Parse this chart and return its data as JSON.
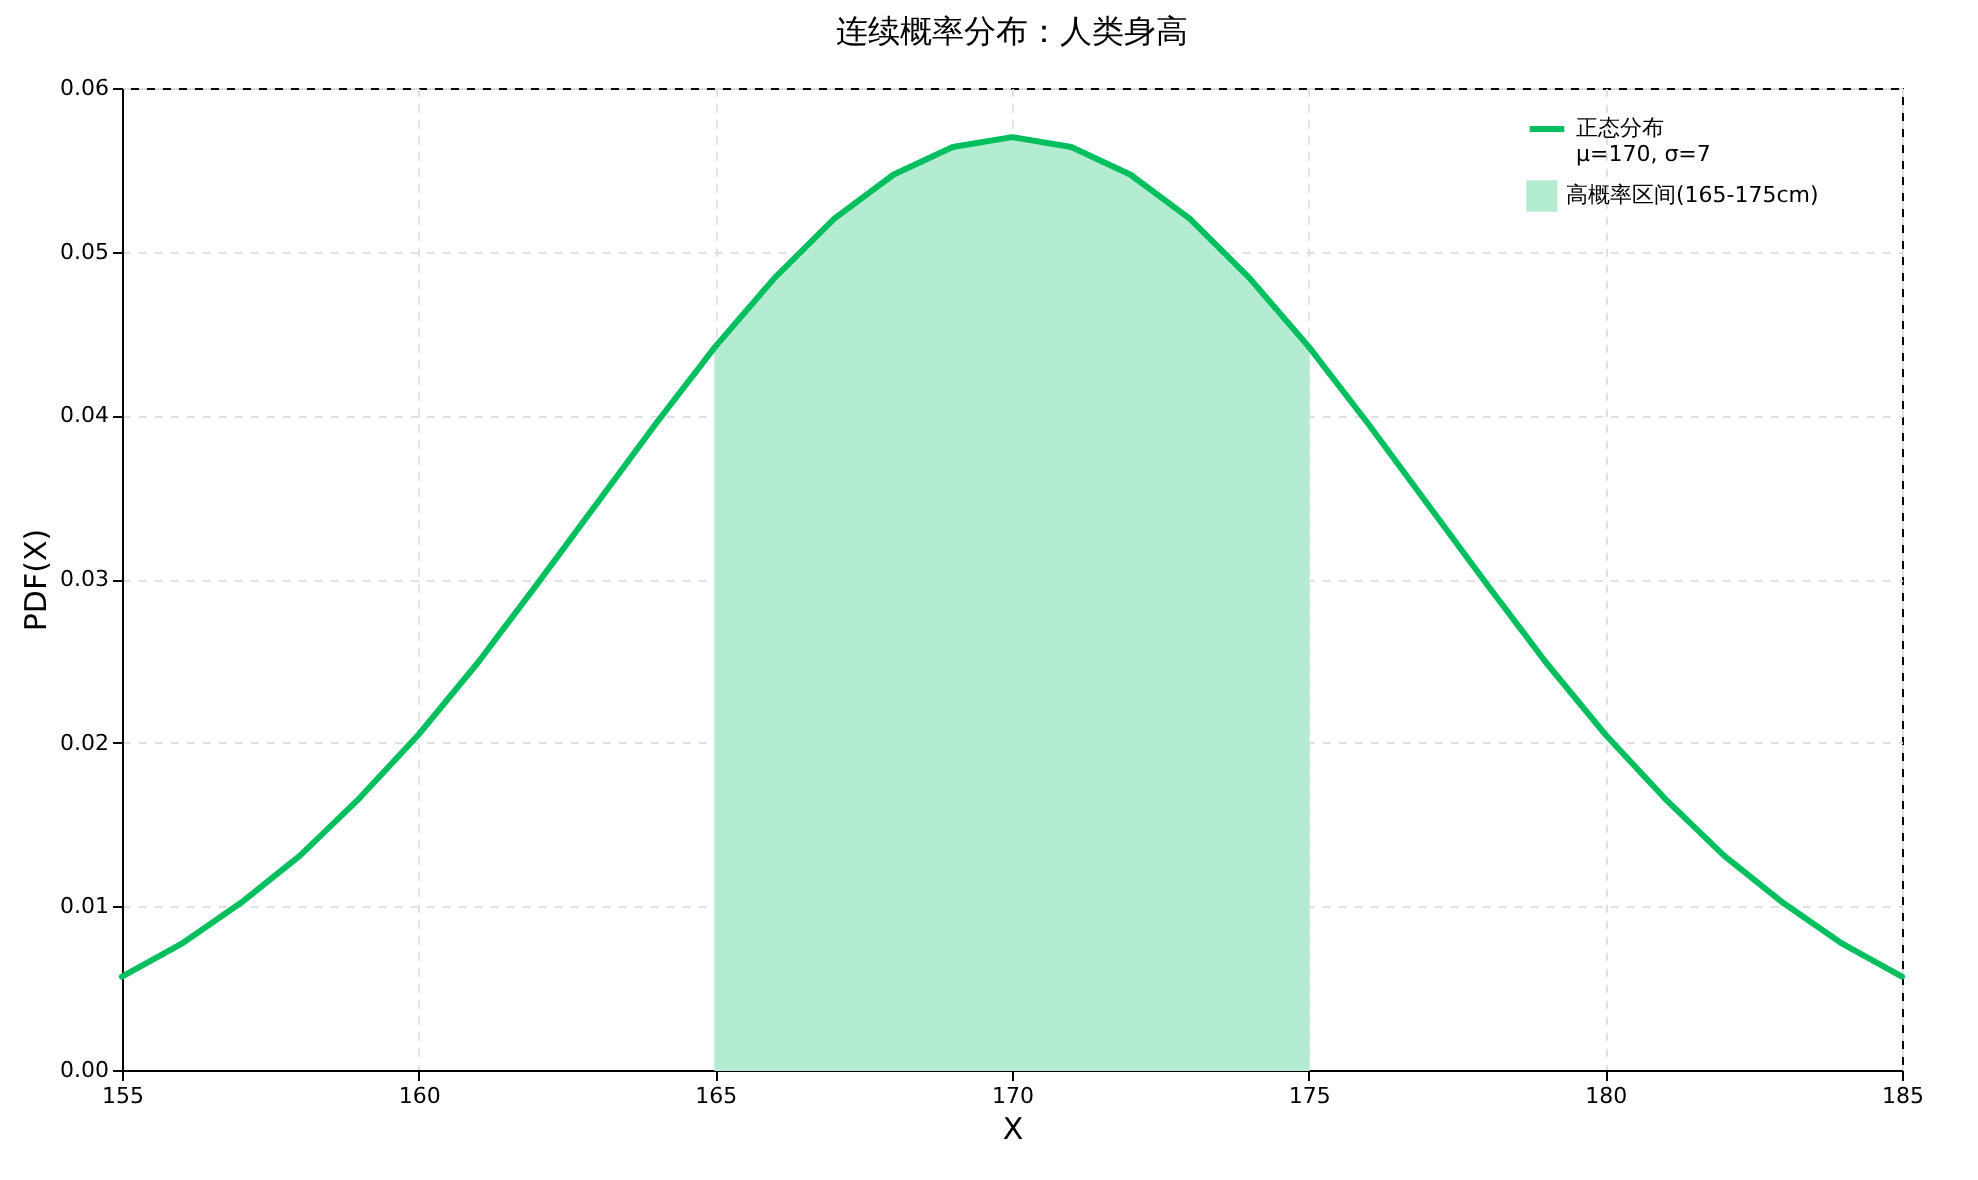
{
  "chart_data": {
    "type": "line",
    "title": "连续概率分布：人类身高",
    "xlabel": "X",
    "ylabel": "PDF(X)",
    "xlim": [
      155,
      185
    ],
    "xticks": [
      155,
      160,
      165,
      170,
      175,
      180,
      185
    ],
    "ylim": [
      0,
      0.06
    ],
    "yticks": [
      {
        "value": 0,
        "label": "0.00"
      },
      {
        "value": 0.01,
        "label": "0.01"
      },
      {
        "value": 0.02,
        "label": "0.02"
      },
      {
        "value": 0.03,
        "label": "0.03"
      },
      {
        "value": 0.04,
        "label": "0.04"
      },
      {
        "value": 0.05,
        "label": "0.05"
      },
      {
        "value": 0.06,
        "label": "0.06"
      }
    ],
    "grid": true,
    "legend": "top right",
    "series": [
      {
        "name": "正态分布\nμ=170, σ=7",
        "type": "line",
        "color": "#00bf5f",
        "x": [
          155,
          156,
          157,
          158,
          159,
          160,
          161,
          162,
          163,
          164,
          165,
          166,
          167,
          168,
          169,
          170,
          171,
          172,
          173,
          174,
          175,
          176,
          177,
          178,
          179,
          180,
          181,
          182,
          183,
          184,
          185
        ],
        "values": [
          0.0057,
          0.0077,
          0.0102,
          0.0131,
          0.0166,
          0.0205,
          0.0249,
          0.0297,
          0.0346,
          0.0395,
          0.0442,
          0.0484,
          0.052,
          0.0547,
          0.0564,
          0.057,
          0.0564,
          0.0547,
          0.052,
          0.0484,
          0.0442,
          0.0395,
          0.0346,
          0.0297,
          0.0249,
          0.0205,
          0.0166,
          0.0131,
          0.0102,
          0.0077,
          0.0057
        ]
      },
      {
        "name": "高概率区间(165-175cm)",
        "type": "area",
        "color": "#b4ecd2",
        "x": [
          165,
          166,
          167,
          168,
          169,
          170,
          171,
          172,
          173,
          174,
          175
        ],
        "values": [
          0.0442,
          0.0484,
          0.052,
          0.0547,
          0.0564,
          0.057,
          0.0564,
          0.0547,
          0.052,
          0.0484,
          0.0442
        ]
      }
    ]
  }
}
